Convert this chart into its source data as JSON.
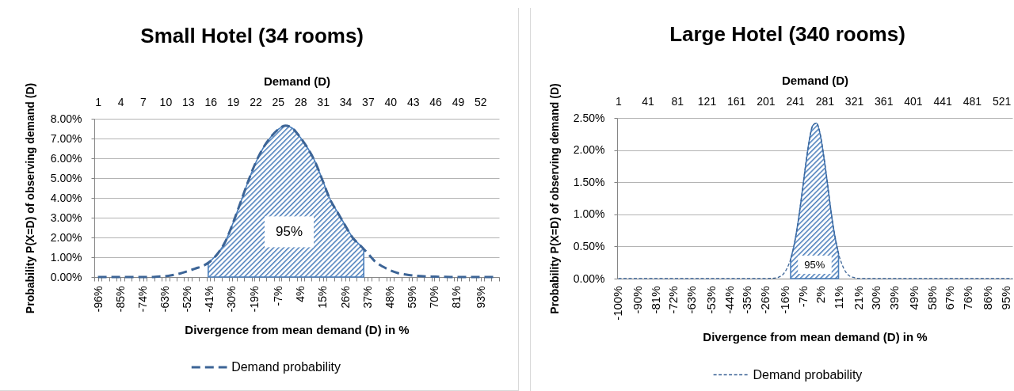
{
  "chart_data": [
    {
      "type": "line",
      "title": "Small Hotel (34 rooms)",
      "xlabel": "Divergence from mean demand (D) in %",
      "ylabel": "Probability P(X=D) of observing demand (D)",
      "x2label": "Demand (D)",
      "xlim": [
        -98.1,
        101.9
      ],
      "xticks": [
        {
          "value": -98.1,
          "label": null
        },
        {
          "value": -96,
          "label": "-96%"
        },
        {
          "value": -94.4,
          "label": null
        },
        {
          "value": -90.7,
          "label": null
        },
        {
          "value": -87,
          "label": null
        },
        {
          "value": -85,
          "label": "-85%"
        },
        {
          "value": -83.3,
          "label": null
        },
        {
          "value": -79.6,
          "label": null
        },
        {
          "value": -75.9,
          "label": null
        },
        {
          "value": -74,
          "label": "-74%"
        },
        {
          "value": -72.2,
          "label": null
        },
        {
          "value": -68.5,
          "label": null
        },
        {
          "value": -64.8,
          "label": null
        },
        {
          "value": -63,
          "label": "-63%"
        },
        {
          "value": -61.1,
          "label": null
        },
        {
          "value": -57.4,
          "label": null
        },
        {
          "value": -53.7,
          "label": null
        },
        {
          "value": -52,
          "label": "-52%"
        },
        {
          "value": -50,
          "label": null
        },
        {
          "value": -46.3,
          "label": null
        },
        {
          "value": -42.6,
          "label": null
        },
        {
          "value": -41,
          "label": "-41%"
        },
        {
          "value": -38.9,
          "label": null
        },
        {
          "value": -35.2,
          "label": null
        },
        {
          "value": -31.5,
          "label": null
        },
        {
          "value": -30,
          "label": "-30%"
        },
        {
          "value": -27.8,
          "label": null
        },
        {
          "value": -24.1,
          "label": null
        },
        {
          "value": -20.4,
          "label": null
        },
        {
          "value": -19,
          "label": "-19%"
        },
        {
          "value": -16.7,
          "label": null
        },
        {
          "value": -13,
          "label": null
        },
        {
          "value": -9.3,
          "label": null
        },
        {
          "value": -7,
          "label": "-7%"
        },
        {
          "value": -5.6,
          "label": null
        },
        {
          "value": -1.9,
          "label": null
        },
        {
          "value": 1.9,
          "label": null
        },
        {
          "value": 4,
          "label": "4%"
        },
        {
          "value": 5.6,
          "label": null
        },
        {
          "value": 9.3,
          "label": null
        },
        {
          "value": 13,
          "label": null
        },
        {
          "value": 15,
          "label": "15%"
        },
        {
          "value": 16.7,
          "label": null
        },
        {
          "value": 20.4,
          "label": null
        },
        {
          "value": 24.1,
          "label": null
        },
        {
          "value": 26,
          "label": "26%"
        },
        {
          "value": 27.8,
          "label": null
        },
        {
          "value": 31.5,
          "label": null
        },
        {
          "value": 35.2,
          "label": null
        },
        {
          "value": 37,
          "label": "37%"
        },
        {
          "value": 38.9,
          "label": null
        },
        {
          "value": 42.6,
          "label": null
        },
        {
          "value": 46.3,
          "label": null
        },
        {
          "value": 48,
          "label": "48%"
        },
        {
          "value": 50,
          "label": null
        },
        {
          "value": 53.7,
          "label": null
        },
        {
          "value": 57.4,
          "label": null
        },
        {
          "value": 59,
          "label": "59%"
        },
        {
          "value": 61.1,
          "label": null
        },
        {
          "value": 64.8,
          "label": null
        },
        {
          "value": 68.5,
          "label": null
        },
        {
          "value": 70,
          "label": "70%"
        },
        {
          "value": 72.2,
          "label": null
        },
        {
          "value": 75.9,
          "label": null
        },
        {
          "value": 79.6,
          "label": null
        },
        {
          "value": 81,
          "label": "81%"
        },
        {
          "value": 83.3,
          "label": null
        },
        {
          "value": 87,
          "label": null
        },
        {
          "value": 90.7,
          "label": null
        },
        {
          "value": 93,
          "label": "93%"
        },
        {
          "value": 94.4,
          "label": null
        },
        {
          "value": 98.1,
          "label": null
        },
        {
          "value": 101.9,
          "label": null
        }
      ],
      "x2lim": [
        0.5,
        54.5
      ],
      "x2ticks": [
        1,
        4,
        7,
        10,
        13,
        16,
        19,
        22,
        25,
        28,
        31,
        34,
        37,
        40,
        43,
        46,
        49,
        52
      ],
      "ylim": [
        0,
        8
      ],
      "yticks": [
        {
          "value": 0,
          "label": "0.00%"
        },
        {
          "value": 1,
          "label": "1.00%"
        },
        {
          "value": 2,
          "label": "2.00%"
        },
        {
          "value": 3,
          "label": "3.00%"
        },
        {
          "value": 4,
          "label": "4.00%"
        },
        {
          "value": 5,
          "label": "5.00%"
        },
        {
          "value": 6,
          "label": "6.00%"
        },
        {
          "value": 7,
          "label": "7.00%"
        },
        {
          "value": 8,
          "label": "8.00%"
        }
      ],
      "grid": "y",
      "legend": "bottom",
      "line_style": "dashed",
      "series": [
        {
          "name": "Demand probability",
          "color": "#3c6496",
          "x": [
            -96.3,
            -92.6,
            -88.9,
            -85.2,
            -81.5,
            -77.8,
            -74.1,
            -70.4,
            -66.7,
            -63,
            -59.3,
            -55.6,
            -51.9,
            -48.1,
            -44.4,
            -40.7,
            -37,
            -33.3,
            -29.6,
            -25.9,
            -22.2,
            -18.5,
            -14.8,
            -11.1,
            -7.4,
            -3.7,
            0,
            3.7,
            7.4,
            11.1,
            14.8,
            18.5,
            22.2,
            25.9,
            29.6,
            33.3,
            37,
            40.7,
            44.4,
            48.1,
            51.9,
            55.6,
            59.3,
            63,
            66.7,
            70.4,
            74.1,
            77.8,
            81.5,
            85.2,
            88.9,
            92.6,
            96.3,
            100
          ],
          "values": [
            0,
            0,
            0,
            0,
            0,
            0,
            0,
            0,
            0.02,
            0.04,
            0.1,
            0.18,
            0.3,
            0.43,
            0.56,
            0.8,
            1.2,
            1.8,
            2.72,
            3.75,
            4.8,
            5.75,
            6.5,
            7.05,
            7.45,
            7.65,
            7.5,
            7.05,
            6.5,
            5.8,
            4.85,
            3.9,
            3.25,
            2.6,
            1.98,
            1.6,
            1.2,
            0.78,
            0.53,
            0.34,
            0.2,
            0.13,
            0.08,
            0.05,
            0.03,
            0.02,
            0.01,
            0,
            0,
            0,
            0,
            0,
            0,
            0
          ]
        },
        {
          "type": "area",
          "axis": "x2",
          "color": "#4a7ebb",
          "x": [
            15.7,
            16,
            17,
            18,
            19,
            20,
            21,
            22,
            23,
            24,
            25,
            26,
            27,
            28,
            29,
            30,
            31,
            32,
            33,
            34,
            35,
            36,
            36.45
          ],
          "values": [
            0.66,
            0.8,
            1.2,
            1.8,
            2.72,
            3.75,
            4.8,
            5.75,
            6.5,
            7.05,
            7.45,
            7.65,
            7.5,
            7.05,
            6.5,
            5.8,
            4.85,
            3.9,
            3.25,
            2.6,
            1.98,
            1.6,
            1.43
          ]
        }
      ],
      "annotations": [
        "95%"
      ]
    },
    {
      "type": "line",
      "title": "Large Hotel (340 rooms)",
      "xlabel": "Divergence from mean demand (D) in %",
      "ylabel": "Probability P(X=D) of observing demand (D)",
      "x2label": "Demand (D)",
      "xlim": [
        -100.2,
        98.5
      ],
      "xticks": [
        {
          "value": -100,
          "label": "-100%"
        },
        {
          "value": -90,
          "label": "-90%"
        },
        {
          "value": -81,
          "label": "-81%"
        },
        {
          "value": -72,
          "label": "-72%"
        },
        {
          "value": -63,
          "label": "-63%"
        },
        {
          "value": -53,
          "label": "-53%"
        },
        {
          "value": -44,
          "label": "-44%"
        },
        {
          "value": -35,
          "label": "-35%"
        },
        {
          "value": -26,
          "label": "-26%"
        },
        {
          "value": -16,
          "label": "-16%"
        },
        {
          "value": -7,
          "label": "-7%"
        },
        {
          "value": 2,
          "label": "2%"
        },
        {
          "value": 11,
          "label": "11%"
        },
        {
          "value": 21,
          "label": "21%"
        },
        {
          "value": 30,
          "label": "30%"
        },
        {
          "value": 39,
          "label": "39%"
        },
        {
          "value": 49,
          "label": "49%"
        },
        {
          "value": 58,
          "label": "58%"
        },
        {
          "value": 67,
          "label": "67%"
        },
        {
          "value": 76,
          "label": "76%"
        },
        {
          "value": 86,
          "label": "86%"
        },
        {
          "value": 95,
          "label": "95%"
        }
      ],
      "x2lim": [
        -0.5,
        536
      ],
      "x2ticks": [
        1,
        41,
        81,
        121,
        161,
        201,
        241,
        281,
        321,
        361,
        401,
        441,
        481,
        521
      ],
      "ylim": [
        0,
        2.5
      ],
      "yticks": [
        {
          "value": 0,
          "label": "0.00%"
        },
        {
          "value": 0.5,
          "label": "0.50%"
        },
        {
          "value": 1,
          "label": "1.00%"
        },
        {
          "value": 1.5,
          "label": "1.50%"
        },
        {
          "value": 2,
          "label": "2.00%"
        },
        {
          "value": 2.5,
          "label": "2.50%"
        }
      ],
      "grid": "y",
      "legend": "bottom",
      "line_style": "dashed",
      "series": [
        {
          "name": "Demand probability",
          "color": "#3c6496",
          "x": [
            -99.6,
            -63,
            -25.9,
            -20.4,
            -18.5,
            -16.7,
            -14.8,
            -13,
            -11.1,
            -9.3,
            -7.4,
            -5.6,
            -3.7,
            -1.9,
            0,
            1.9,
            3.7,
            5.6,
            7.4,
            9.3,
            11.1,
            13,
            14.8,
            16.7,
            18.5,
            22.2,
            48.1,
            98.5
          ],
          "values": [
            0,
            0,
            0,
            0.01,
            0.03,
            0.07,
            0.16,
            0.3,
            0.54,
            0.87,
            1.29,
            1.73,
            2.13,
            2.38,
            2.42,
            2.25,
            1.9,
            1.47,
            1.03,
            0.66,
            0.39,
            0.21,
            0.1,
            0.04,
            0.02,
            0,
            0,
            0
          ]
        },
        {
          "type": "area",
          "axis": "x2",
          "color": "#4a7ebb",
          "x": [
            235,
            240,
            245,
            250,
            255,
            260,
            265,
            270,
            275,
            280,
            285,
            290,
            295,
            300
          ],
          "values": [
            0.3,
            0.54,
            0.87,
            1.29,
            1.73,
            2.13,
            2.38,
            2.42,
            2.25,
            1.9,
            1.47,
            1.03,
            0.66,
            0.39
          ]
        }
      ],
      "annotations": [
        "95%"
      ]
    }
  ]
}
